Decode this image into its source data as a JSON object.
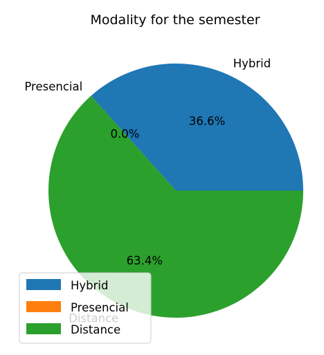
{
  "chart_data": {
    "type": "pie",
    "title": "Modality for the semester",
    "categories": [
      "Hybrid",
      "Presencial",
      "Distance"
    ],
    "values": [
      36.6,
      0.0,
      63.4
    ],
    "percent_labels": [
      "36.6%",
      "0.0%",
      "63.4%"
    ],
    "colors": [
      "#1f77b4",
      "#ff7f0e",
      "#2ca02c"
    ],
    "legend": {
      "placement": "lower-left",
      "entries": [
        "Hybrid",
        "Presencial",
        "Distance"
      ]
    }
  }
}
